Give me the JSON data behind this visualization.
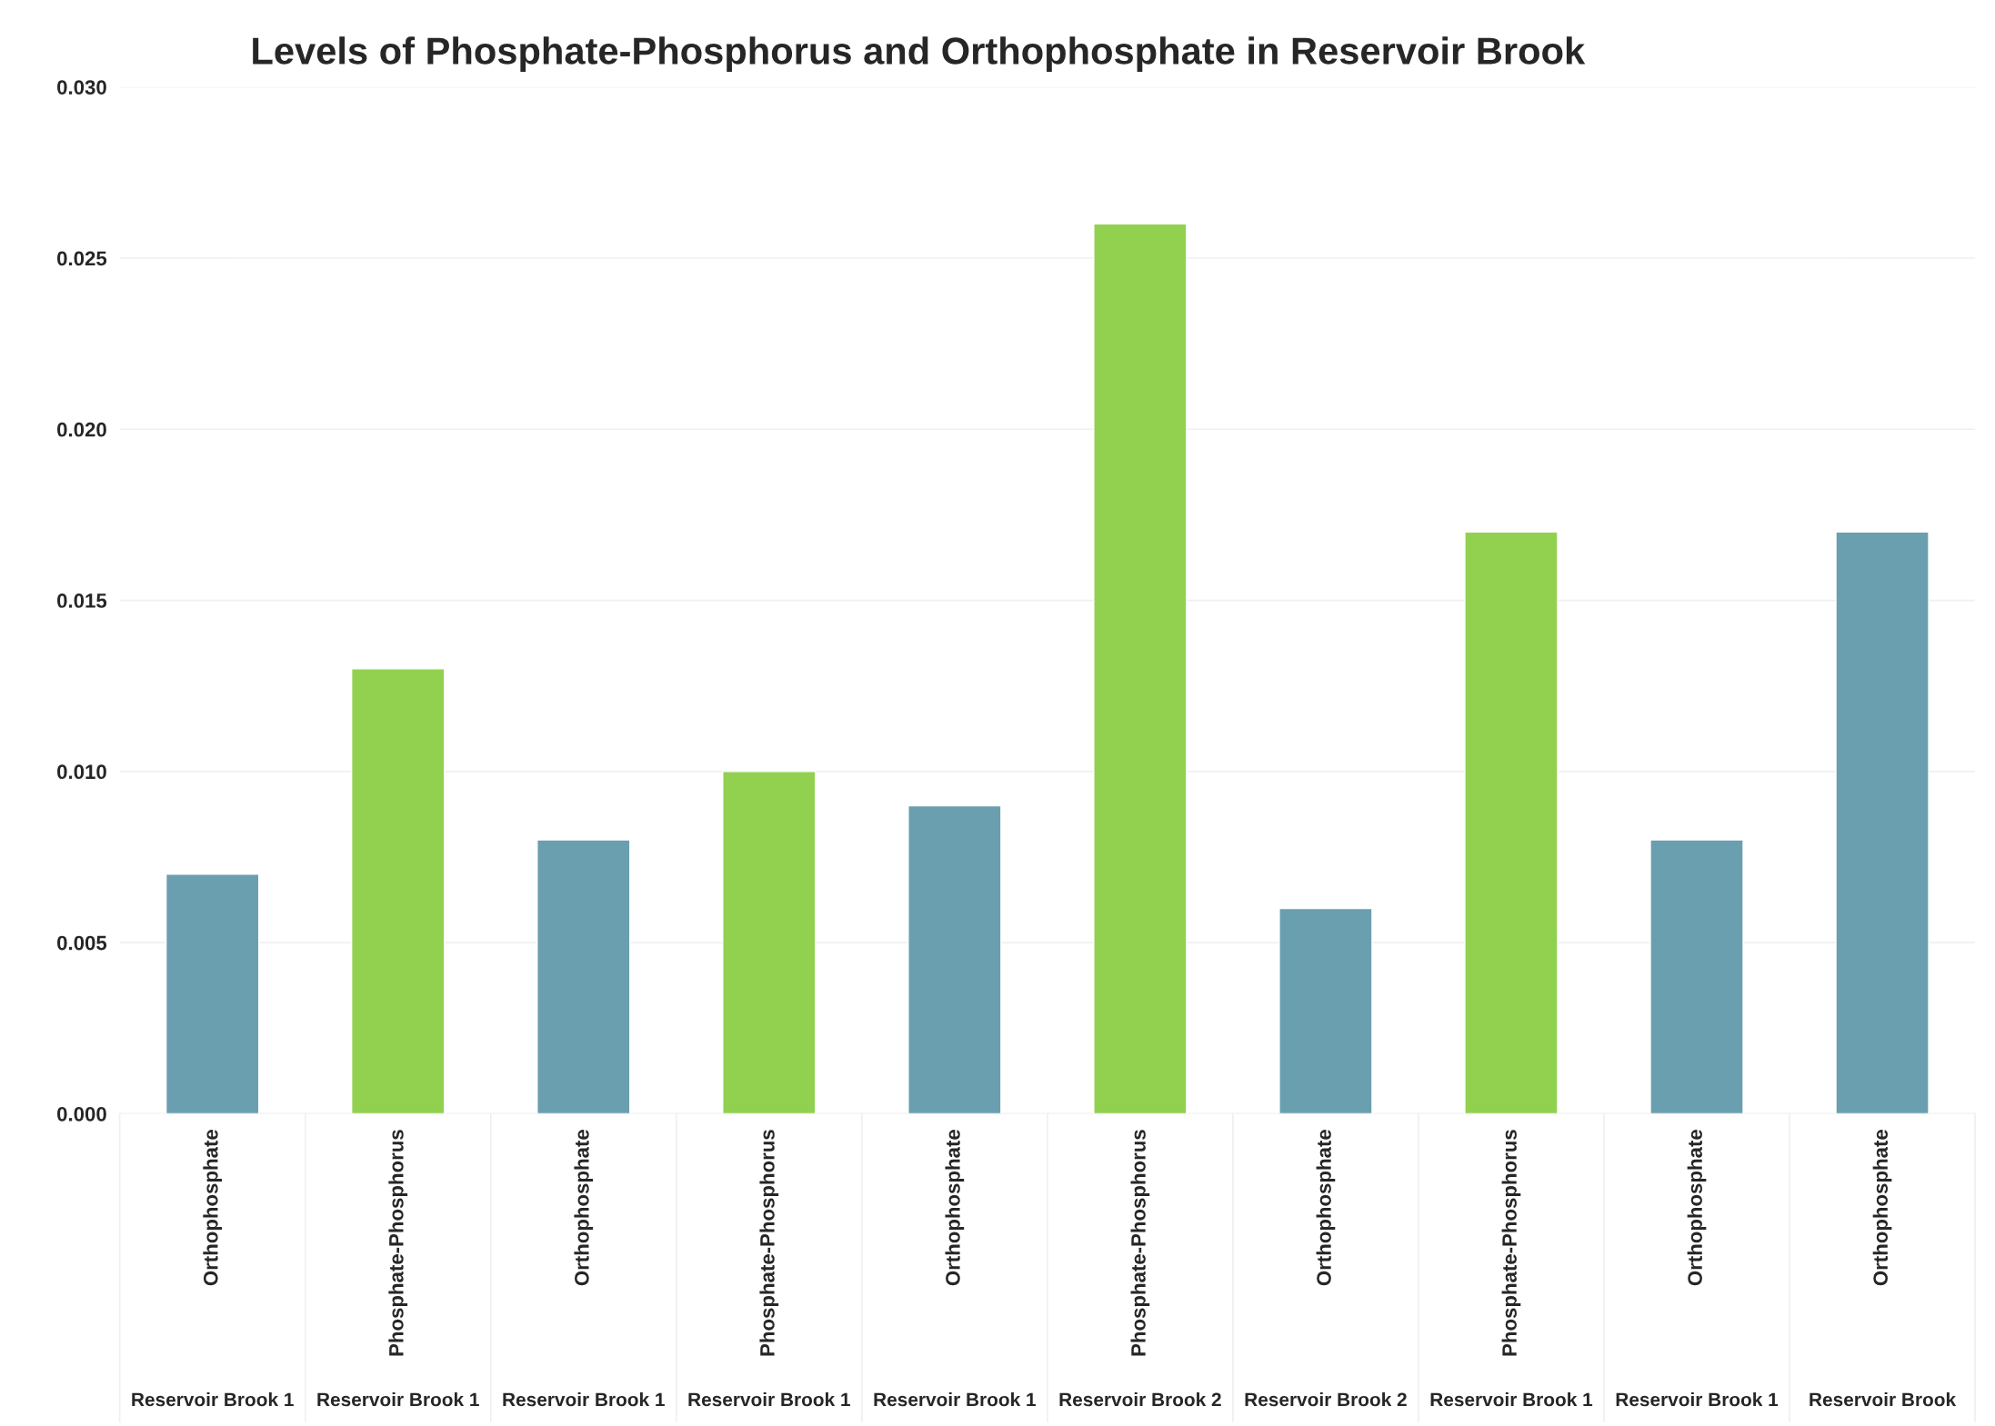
{
  "chart_data": {
    "type": "bar",
    "title": "Levels of Phosphate-Phosphorus and Orthophosphate in Reservoir Brook",
    "categories": [
      "Orthophosphate\nReservoir Brook 1",
      "Phosphate-Phosphorus\nReservoir Brook 1",
      "Orthophosphate\nReservoir Brook 1",
      "Phosphate-Phosphorus\nReservoir Brook 1",
      "Orthophosphate\nReservoir Brook 1",
      "Phosphate-Phosphorus\nReservoir Brook 2",
      "Orthophosphate\nReservoir Brook 2",
      "Phosphate-Phosphorus\nReservoir Brook 1",
      "Orthophosphate\nReservoir Brook 1",
      "Orthophosphate\nReservoir Brook"
    ],
    "values": [
      0.007,
      0.013,
      0.008,
      0.01,
      0.009,
      0.026,
      0.006,
      0.017,
      0.008,
      0.017
    ],
    "colors": [
      "#6a9fb0",
      "#92d050",
      "#6a9fb0",
      "#92d050",
      "#6a9fb0",
      "#92d050",
      "#6a9fb0",
      "#92d050",
      "#6a9fb0",
      "#6a9fb0"
    ],
    "ylim": [
      0,
      0.03
    ],
    "yticks": [
      {
        "value": 0,
        "label": "0.000"
      },
      {
        "value": 0.005,
        "label": "0.005"
      },
      {
        "value": 0.01,
        "label": "0.010"
      },
      {
        "value": 0.015,
        "label": "0.015"
      },
      {
        "value": 0.02,
        "label": "0.020"
      },
      {
        "value": 0.025,
        "label": "0.025"
      },
      {
        "value": 0.03,
        "label": "0.030"
      }
    ],
    "grid": "y"
  }
}
